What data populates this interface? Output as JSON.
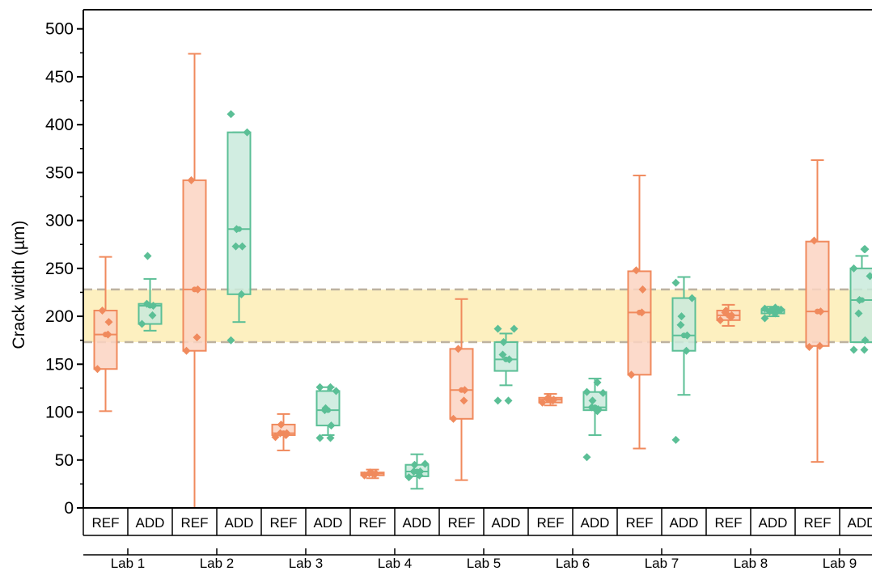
{
  "chart_data": {
    "type": "box",
    "ylabel": "Crack width (µm)",
    "ylim": [
      0,
      520
    ],
    "yticks": [
      0,
      50,
      100,
      150,
      200,
      250,
      300,
      350,
      400,
      450,
      500
    ],
    "tick_labels": [
      "0",
      "50",
      "100",
      "150",
      "200",
      "250",
      "300",
      "350",
      "400",
      "450",
      "500"
    ],
    "reference_band": {
      "low": 173,
      "high": 228
    },
    "groups": [
      "Lab 1",
      "Lab 2",
      "Lab 3",
      "Lab 4",
      "Lab 5",
      "Lab 6",
      "Lab 7",
      "Lab 8",
      "Lab 9"
    ],
    "subcategories": [
      "REF",
      "ADD"
    ],
    "colors": {
      "REF": {
        "line": "#f08a5d",
        "fill": "#fcd3c2"
      },
      "ADD": {
        "line": "#5bbf96",
        "fill": "#c9eadc"
      },
      "band": "#fdf0c0",
      "band_line": "#bdb2a0"
    },
    "boxes": [
      {
        "group": "Lab 1",
        "sub": "REF",
        "whisker_low": 101,
        "q1": 145,
        "median": 181,
        "q3": 206,
        "whisker_high": 262,
        "points": [
          145,
          181,
          194,
          206
        ]
      },
      {
        "group": "Lab 1",
        "sub": "ADD",
        "whisker_low": 185,
        "q1": 192,
        "median": 211,
        "q3": 213,
        "whisker_high": 239,
        "points": [
          192,
          201,
          211,
          213,
          263
        ]
      },
      {
        "group": "Lab 2",
        "sub": "REF",
        "whisker_low": 0,
        "q1": 164,
        "median": 228,
        "q3": 342,
        "whisker_high": 474,
        "points": [
          164,
          178,
          228,
          342
        ]
      },
      {
        "group": "Lab 2",
        "sub": "ADD",
        "whisker_low": 194,
        "q1": 223,
        "median": 291,
        "q3": 392,
        "whisker_high": 392,
        "points": [
          175,
          223,
          273,
          273,
          291,
          392,
          411
        ]
      },
      {
        "group": "Lab 3",
        "sub": "REF",
        "whisker_low": 60,
        "q1": 76,
        "median": 78,
        "q3": 87,
        "whisker_high": 98,
        "points": [
          74,
          76,
          78,
          78,
          87
        ]
      },
      {
        "group": "Lab 3",
        "sub": "ADD",
        "whisker_low": 76,
        "q1": 86,
        "median": 102,
        "q3": 122,
        "whisker_high": 126,
        "points": [
          73,
          73,
          86,
          102,
          104,
          122,
          126,
          126
        ]
      },
      {
        "group": "Lab 4",
        "sub": "REF",
        "whisker_low": 31,
        "q1": 34,
        "median": 36,
        "q3": 37,
        "whisker_high": 40,
        "points": [
          34,
          35,
          36,
          36,
          37
        ]
      },
      {
        "group": "Lab 4",
        "sub": "ADD",
        "whisker_low": 20,
        "q1": 33,
        "median": 38,
        "q3": 45,
        "whisker_high": 56,
        "points": [
          32,
          34,
          38,
          38,
          45,
          46
        ]
      },
      {
        "group": "Lab 5",
        "sub": "REF",
        "whisker_low": 29,
        "q1": 93,
        "median": 123,
        "q3": 166,
        "whisker_high": 218,
        "points": [
          93,
          112,
          123,
          166
        ]
      },
      {
        "group": "Lab 5",
        "sub": "ADD",
        "whisker_low": 128,
        "q1": 143,
        "median": 155,
        "q3": 173,
        "whisker_high": 182,
        "points": [
          112,
          112,
          155,
          160,
          173,
          187,
          187
        ]
      },
      {
        "group": "Lab 6",
        "sub": "REF",
        "whisker_low": 107,
        "q1": 110,
        "median": 113,
        "q3": 115,
        "whisker_high": 119,
        "points": [
          110,
          112,
          113,
          114,
          115
        ]
      },
      {
        "group": "Lab 6",
        "sub": "ADD",
        "whisker_low": 76,
        "q1": 102,
        "median": 105,
        "q3": 121,
        "whisker_high": 135,
        "points": [
          53,
          101,
          103,
          105,
          112,
          120,
          121,
          131
        ]
      },
      {
        "group": "Lab 7",
        "sub": "REF",
        "whisker_low": 62,
        "q1": 139,
        "median": 204,
        "q3": 247,
        "whisker_high": 347,
        "points": [
          139,
          204,
          228,
          248
        ]
      },
      {
        "group": "Lab 7",
        "sub": "ADD",
        "whisker_low": 118,
        "q1": 164,
        "median": 180,
        "q3": 219,
        "whisker_high": 241,
        "points": [
          71,
          164,
          180,
          191,
          200,
          219,
          235
        ]
      },
      {
        "group": "Lab 8",
        "sub": "REF",
        "whisker_low": 190,
        "q1": 196,
        "median": 201,
        "q3": 206,
        "whisker_high": 212,
        "points": [
          196,
          199,
          201,
          204,
          206
        ]
      },
      {
        "group": "Lab 8",
        "sub": "ADD",
        "whisker_low": 200,
        "q1": 203,
        "median": 206,
        "q3": 207,
        "whisker_high": 210,
        "points": [
          198,
          203,
          204,
          205,
          206,
          207,
          208,
          209
        ]
      },
      {
        "group": "Lab 9",
        "sub": "REF",
        "whisker_low": 48,
        "q1": 169,
        "median": 205,
        "q3": 278,
        "whisker_high": 363,
        "points": [
          168,
          169,
          205,
          279
        ]
      },
      {
        "group": "Lab 9",
        "sub": "ADD",
        "whisker_low": 173,
        "q1": 173,
        "median": 217,
        "q3": 250,
        "whisker_high": 263,
        "points": [
          165,
          165,
          175,
          203,
          217,
          242,
          250,
          270,
          270
        ]
      }
    ]
  }
}
